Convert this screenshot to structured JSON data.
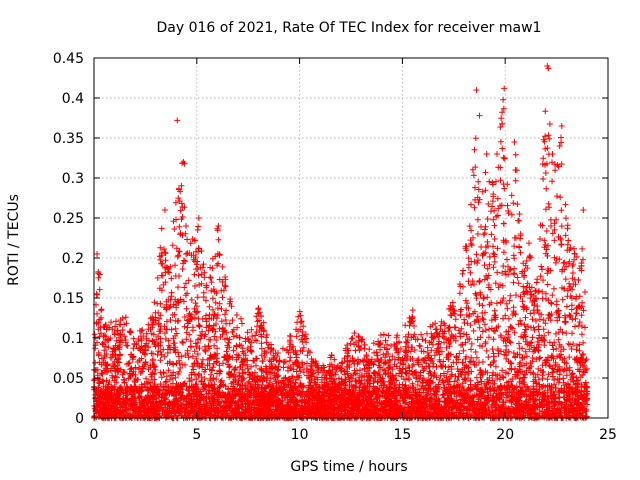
{
  "chart_data": {
    "type": "scatter",
    "title": "Day 016 of 2021, Rate Of TEC Index for receiver maw1",
    "xlabel": "GPS time / hours",
    "ylabel": "ROTI / TECUs",
    "xlim": [
      0,
      25
    ],
    "ylim": [
      0,
      0.45
    ],
    "x_ticks": [
      0,
      5,
      10,
      15,
      20,
      25
    ],
    "y_ticks": [
      0,
      0.05,
      0.1,
      0.15,
      0.2,
      0.25,
      0.3,
      0.35,
      0.4,
      0.45
    ],
    "x_tick_labels": [
      "0",
      "5",
      "10",
      "15",
      "20",
      "25"
    ],
    "y_tick_labels": [
      "0",
      "0.05",
      "0.1",
      "0.15",
      "0.2",
      "0.25",
      "0.3",
      "0.35",
      "0.4",
      "0.45"
    ],
    "grid": true,
    "marker": "+",
    "series": [
      {
        "name": "ROTI",
        "color": "#ff0000",
        "data_range_hours": [
          0,
          24
        ],
        "envelope": [
          {
            "x": 0.0,
            "y": 0.09
          },
          {
            "x": 0.2,
            "y": 0.205
          },
          {
            "x": 0.5,
            "y": 0.12
          },
          {
            "x": 1.0,
            "y": 0.12
          },
          {
            "x": 1.5,
            "y": 0.13
          },
          {
            "x": 2.0,
            "y": 0.1
          },
          {
            "x": 2.5,
            "y": 0.12
          },
          {
            "x": 3.0,
            "y": 0.15
          },
          {
            "x": 3.3,
            "y": 0.24
          },
          {
            "x": 3.6,
            "y": 0.19
          },
          {
            "x": 4.0,
            "y": 0.29
          },
          {
            "x": 4.3,
            "y": 0.32
          },
          {
            "x": 4.6,
            "y": 0.22
          },
          {
            "x": 5.0,
            "y": 0.25
          },
          {
            "x": 5.5,
            "y": 0.17
          },
          {
            "x": 6.0,
            "y": 0.24
          },
          {
            "x": 6.5,
            "y": 0.16
          },
          {
            "x": 7.0,
            "y": 0.13
          },
          {
            "x": 7.5,
            "y": 0.11
          },
          {
            "x": 8.0,
            "y": 0.14
          },
          {
            "x": 8.5,
            "y": 0.1
          },
          {
            "x": 9.0,
            "y": 0.08
          },
          {
            "x": 9.5,
            "y": 0.1
          },
          {
            "x": 10.0,
            "y": 0.14
          },
          {
            "x": 10.5,
            "y": 0.09
          },
          {
            "x": 11.0,
            "y": 0.06
          },
          {
            "x": 11.5,
            "y": 0.08
          },
          {
            "x": 12.0,
            "y": 0.07
          },
          {
            "x": 12.5,
            "y": 0.11
          },
          {
            "x": 13.0,
            "y": 0.1
          },
          {
            "x": 13.5,
            "y": 0.09
          },
          {
            "x": 14.0,
            "y": 0.11
          },
          {
            "x": 14.5,
            "y": 0.1
          },
          {
            "x": 15.0,
            "y": 0.11
          },
          {
            "x": 15.5,
            "y": 0.14
          },
          {
            "x": 16.0,
            "y": 0.1
          },
          {
            "x": 16.5,
            "y": 0.12
          },
          {
            "x": 17.0,
            "y": 0.13
          },
          {
            "x": 17.5,
            "y": 0.15
          },
          {
            "x": 18.0,
            "y": 0.2
          },
          {
            "x": 18.3,
            "y": 0.27
          },
          {
            "x": 18.6,
            "y": 0.38
          },
          {
            "x": 18.8,
            "y": 0.33
          },
          {
            "x": 19.2,
            "y": 0.3
          },
          {
            "x": 19.6,
            "y": 0.32
          },
          {
            "x": 19.9,
            "y": 0.41
          },
          {
            "x": 20.2,
            "y": 0.25
          },
          {
            "x": 20.5,
            "y": 0.34
          },
          {
            "x": 20.8,
            "y": 0.21
          },
          {
            "x": 21.2,
            "y": 0.22
          },
          {
            "x": 21.6,
            "y": 0.18
          },
          {
            "x": 22.0,
            "y": 0.44
          },
          {
            "x": 22.3,
            "y": 0.33
          },
          {
            "x": 22.7,
            "y": 0.36
          },
          {
            "x": 23.0,
            "y": 0.25
          },
          {
            "x": 23.5,
            "y": 0.2
          },
          {
            "x": 23.8,
            "y": 0.26
          },
          {
            "x": 24.0,
            "y": 0.03
          }
        ],
        "outliers": [
          {
            "x": 0.15,
            "y": 0.205
          },
          {
            "x": 3.45,
            "y": 0.26
          },
          {
            "x": 4.05,
            "y": 0.372
          },
          {
            "x": 4.35,
            "y": 0.32
          },
          {
            "x": 4.4,
            "y": 0.318
          },
          {
            "x": 5.1,
            "y": 0.25
          },
          {
            "x": 6.05,
            "y": 0.24
          },
          {
            "x": 18.6,
            "y": 0.41
          },
          {
            "x": 18.75,
            "y": 0.378
          },
          {
            "x": 19.1,
            "y": 0.33
          },
          {
            "x": 19.6,
            "y": 0.33
          },
          {
            "x": 19.95,
            "y": 0.412
          },
          {
            "x": 20.45,
            "y": 0.345
          },
          {
            "x": 20.5,
            "y": 0.31
          },
          {
            "x": 20.7,
            "y": 0.255
          },
          {
            "x": 22.05,
            "y": 0.44
          },
          {
            "x": 22.1,
            "y": 0.437
          },
          {
            "x": 22.3,
            "y": 0.33
          },
          {
            "x": 22.75,
            "y": 0.365
          },
          {
            "x": 22.65,
            "y": 0.34
          },
          {
            "x": 23.8,
            "y": 0.26
          }
        ]
      }
    ]
  }
}
